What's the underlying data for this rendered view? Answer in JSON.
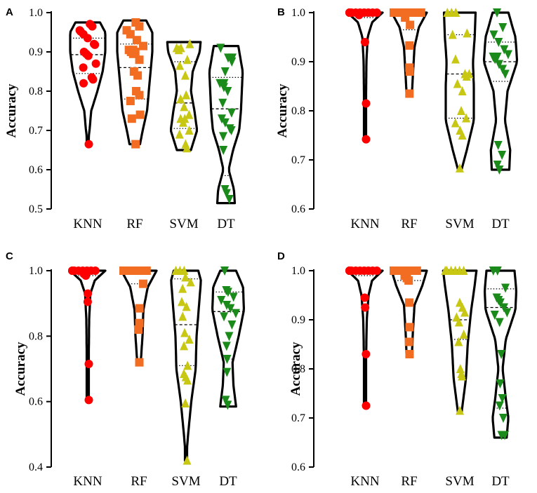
{
  "chart_data": [
    {
      "panel": "A",
      "type": "violin",
      "ylabel": "Accuracy",
      "ylim": [
        0.5,
        1.0
      ],
      "yticks": [
        "0.5",
        "0.6",
        "0.7",
        "0.8",
        "0.9",
        "1.0"
      ],
      "categories": [
        "KNN",
        "RF",
        "SVM",
        "DT"
      ],
      "series": [
        {
          "name": "KNN",
          "color": "#ff0000",
          "marker": "circle",
          "values": [
            0.971,
            0.965,
            0.955,
            0.952,
            0.945,
            0.935,
            0.92,
            0.918,
            0.9,
            0.895,
            0.89,
            0.87,
            0.86,
            0.835,
            0.83,
            0.82,
            0.665
          ],
          "range": [
            0.665,
            0.975
          ],
          "median": 0.893,
          "quartiles": [
            0.845,
            0.935
          ],
          "profile": [
            [
              0.665,
              0.0
            ],
            [
              0.7,
              0.1
            ],
            [
              0.75,
              0.2
            ],
            [
              0.8,
              0.55
            ],
            [
              0.85,
              0.85
            ],
            [
              0.9,
              1.0
            ],
            [
              0.95,
              1.0
            ],
            [
              0.975,
              0.7
            ]
          ]
        },
        {
          "name": "RF",
          "color": "#f26c22",
          "marker": "square",
          "values": [
            0.975,
            0.965,
            0.955,
            0.945,
            0.93,
            0.915,
            0.905,
            0.905,
            0.9,
            0.9,
            0.895,
            0.88,
            0.85,
            0.84,
            0.8,
            0.79,
            0.775,
            0.74,
            0.73,
            0.665
          ],
          "range": [
            0.665,
            0.98
          ],
          "median": 0.86,
          "quartiles": [
            0.78,
            0.92
          ],
          "profile": [
            [
              0.665,
              0.3
            ],
            [
              0.7,
              0.45
            ],
            [
              0.75,
              0.7
            ],
            [
              0.8,
              0.8
            ],
            [
              0.85,
              0.9
            ],
            [
              0.9,
              1.0
            ],
            [
              0.95,
              1.0
            ],
            [
              0.98,
              0.65
            ]
          ]
        },
        {
          "name": "SVM",
          "color": "#c8c814",
          "marker": "triangle-up",
          "values": [
            0.92,
            0.91,
            0.91,
            0.905,
            0.88,
            0.865,
            0.84,
            0.79,
            0.78,
            0.76,
            0.74,
            0.73,
            0.73,
            0.72,
            0.7,
            0.69,
            0.665,
            0.655
          ],
          "range": [
            0.65,
            0.925
          ],
          "median": 0.77,
          "quartiles": [
            0.705,
            0.875
          ],
          "profile": [
            [
              0.65,
              0.4
            ],
            [
              0.7,
              0.75
            ],
            [
              0.75,
              0.6
            ],
            [
              0.8,
              0.4
            ],
            [
              0.85,
              0.5
            ],
            [
              0.9,
              0.9
            ],
            [
              0.925,
              0.95
            ]
          ]
        },
        {
          "name": "DT",
          "color": "#1a8a1a",
          "marker": "triangle-down",
          "values": [
            0.91,
            0.885,
            0.885,
            0.875,
            0.85,
            0.82,
            0.82,
            0.81,
            0.8,
            0.77,
            0.745,
            0.73,
            0.72,
            0.705,
            0.7,
            0.685,
            0.65,
            0.55,
            0.54,
            0.525
          ],
          "range": [
            0.515,
            0.915
          ],
          "median": 0.755,
          "quartiles": [
            0.585,
            0.835
          ],
          "profile": [
            [
              0.515,
              0.5
            ],
            [
              0.55,
              0.45
            ],
            [
              0.6,
              0.15
            ],
            [
              0.65,
              0.4
            ],
            [
              0.7,
              0.75
            ],
            [
              0.75,
              0.85
            ],
            [
              0.8,
              0.9
            ],
            [
              0.85,
              0.95
            ],
            [
              0.915,
              0.7
            ]
          ]
        }
      ]
    },
    {
      "panel": "B",
      "type": "violin",
      "ylabel": "Accuracy",
      "ylim": [
        0.6,
        1.0
      ],
      "yticks": [
        "0.6",
        "0.7",
        "0.8",
        "0.9",
        "1.0"
      ],
      "categories": [
        "KNN",
        "RF",
        "SVM",
        "DT"
      ],
      "series": [
        {
          "name": "KNN",
          "color": "#ff0000",
          "marker": "circle",
          "values": [
            1.0,
            1.0,
            1.0,
            1.0,
            1.0,
            1.0,
            1.0,
            1.0,
            1.0,
            1.0,
            1.0,
            0.995,
            0.94,
            0.815,
            0.742
          ],
          "range": [
            0.74,
            1.0
          ],
          "median": 1.0,
          "quartiles": [
            0.99,
            1.0
          ],
          "profile": [
            [
              0.74,
              0.0
            ],
            [
              0.8,
              0.05
            ],
            [
              0.9,
              0.08
            ],
            [
              0.95,
              0.15
            ],
            [
              0.98,
              0.4
            ],
            [
              1.0,
              1.0
            ]
          ]
        },
        {
          "name": "RF",
          "color": "#f26c22",
          "marker": "square",
          "values": [
            1.0,
            1.0,
            1.0,
            1.0,
            1.0,
            1.0,
            1.0,
            1.0,
            1.0,
            1.0,
            1.0,
            0.99,
            0.975,
            0.933,
            0.888,
            0.88,
            0.835
          ],
          "range": [
            0.833,
            1.0
          ],
          "median": 1.0,
          "quartiles": [
            0.965,
            1.0
          ],
          "profile": [
            [
              0.833,
              0.15
            ],
            [
              0.88,
              0.22
            ],
            [
              0.93,
              0.3
            ],
            [
              0.97,
              0.55
            ],
            [
              1.0,
              1.0
            ]
          ]
        },
        {
          "name": "SVM",
          "color": "#c8c814",
          "marker": "triangle-up",
          "values": [
            1.0,
            1.0,
            1.0,
            0.958,
            0.955,
            0.905,
            0.875,
            0.875,
            0.87,
            0.855,
            0.84,
            0.8,
            0.785,
            0.775,
            0.76,
            0.75,
            0.683
          ],
          "range": [
            0.68,
            1.0
          ],
          "median": 0.875,
          "quartiles": [
            0.785,
            0.955
          ],
          "profile": [
            [
              0.68,
              0.1
            ],
            [
              0.72,
              0.4
            ],
            [
              0.78,
              0.8
            ],
            [
              0.85,
              0.8
            ],
            [
              0.9,
              0.75
            ],
            [
              0.95,
              0.85
            ],
            [
              1.0,
              0.9
            ]
          ]
        },
        {
          "name": "DT",
          "color": "#1a8a1a",
          "marker": "triangle-down",
          "values": [
            1.0,
            0.97,
            0.955,
            0.94,
            0.925,
            0.915,
            0.91,
            0.91,
            0.905,
            0.895,
            0.885,
            0.875,
            0.73,
            0.71,
            0.69,
            0.68
          ],
          "range": [
            0.68,
            1.0
          ],
          "median": 0.9,
          "quartiles": [
            0.86,
            0.94
          ],
          "profile": [
            [
              0.68,
              0.5
            ],
            [
              0.72,
              0.55
            ],
            [
              0.78,
              0.25
            ],
            [
              0.84,
              0.4
            ],
            [
              0.9,
              0.95
            ],
            [
              0.95,
              0.85
            ],
            [
              1.0,
              0.45
            ]
          ]
        }
      ]
    },
    {
      "panel": "C",
      "type": "violin",
      "ylabel": "Accuracy",
      "ylim": [
        0.4,
        1.0
      ],
      "yticks": [
        "0.4",
        "0.6",
        "0.8",
        "1.0"
      ],
      "categories": [
        "KNN",
        "RF",
        "SVM",
        "DT"
      ],
      "series": [
        {
          "name": "KNN",
          "color": "#ff0000",
          "marker": "circle",
          "values": [
            1.0,
            1.0,
            1.0,
            1.0,
            1.0,
            1.0,
            1.0,
            1.0,
            0.99,
            0.985,
            0.93,
            0.905,
            0.715,
            0.605
          ],
          "range": [
            0.6,
            1.0
          ],
          "median": 1.0,
          "quartiles": [
            0.985,
            1.0
          ],
          "profile": [
            [
              0.6,
              0.0
            ],
            [
              0.7,
              0.05
            ],
            [
              0.85,
              0.08
            ],
            [
              0.93,
              0.15
            ],
            [
              0.97,
              0.4
            ],
            [
              1.0,
              1.0
            ]
          ]
        },
        {
          "name": "RF",
          "color": "#f26c22",
          "marker": "square",
          "values": [
            1.0,
            1.0,
            1.0,
            1.0,
            1.0,
            1.0,
            1.0,
            1.0,
            1.0,
            0.96,
            0.885,
            0.84,
            0.82,
            0.72
          ],
          "range": [
            0.72,
            1.0
          ],
          "median": 1.0,
          "quartiles": [
            0.96,
            1.0
          ],
          "profile": [
            [
              0.72,
              0.1
            ],
            [
              0.8,
              0.2
            ],
            [
              0.88,
              0.25
            ],
            [
              0.95,
              0.5
            ],
            [
              1.0,
              1.0
            ]
          ]
        },
        {
          "name": "SVM",
          "color": "#c8c814",
          "marker": "triangle-up",
          "values": [
            1.0,
            1.0,
            1.0,
            0.98,
            0.965,
            0.945,
            0.905,
            0.89,
            0.86,
            0.81,
            0.79,
            0.77,
            0.71,
            0.685,
            0.675,
            0.665,
            0.595,
            0.42
          ],
          "range": [
            0.42,
            1.0
          ],
          "median": 0.835,
          "quartiles": [
            0.71,
            0.975
          ],
          "profile": [
            [
              0.42,
              0.0
            ],
            [
              0.5,
              0.12
            ],
            [
              0.6,
              0.3
            ],
            [
              0.7,
              0.55
            ],
            [
              0.8,
              0.6
            ],
            [
              0.9,
              0.75
            ],
            [
              0.97,
              0.85
            ],
            [
              1.0,
              0.7
            ]
          ]
        },
        {
          "name": "DT",
          "color": "#1a8a1a",
          "marker": "triangle-down",
          "values": [
            1.0,
            0.94,
            0.935,
            0.92,
            0.91,
            0.895,
            0.885,
            0.87,
            0.86,
            0.835,
            0.8,
            0.77,
            0.73,
            0.69,
            0.605,
            0.59
          ],
          "range": [
            0.585,
            1.0
          ],
          "median": 0.875,
          "quartiles": [
            0.73,
            0.935
          ],
          "profile": [
            [
              0.585,
              0.45
            ],
            [
              0.65,
              0.3
            ],
            [
              0.72,
              0.25
            ],
            [
              0.8,
              0.6
            ],
            [
              0.88,
              0.9
            ],
            [
              0.95,
              0.85
            ],
            [
              1.0,
              0.45
            ]
          ]
        }
      ]
    },
    {
      "panel": "D",
      "type": "violin",
      "ylabel": "Accuracy",
      "ylim": [
        0.6,
        1.0
      ],
      "yticks": [
        "0.6",
        "0.7",
        "0.8",
        "0.9",
        "1.0"
      ],
      "categories": [
        "KNN",
        "RF",
        "SVM",
        "DT"
      ],
      "series": [
        {
          "name": "KNN",
          "color": "#ff0000",
          "marker": "circle",
          "values": [
            1.0,
            1.0,
            1.0,
            1.0,
            1.0,
            1.0,
            1.0,
            1.0,
            1.0,
            1.0,
            1.0,
            0.945,
            0.925,
            0.83,
            0.725
          ],
          "range": [
            0.725,
            1.0
          ],
          "median": 1.0,
          "quartiles": [
            0.99,
            1.0
          ],
          "profile": [
            [
              0.725,
              0.0
            ],
            [
              0.8,
              0.05
            ],
            [
              0.9,
              0.1
            ],
            [
              0.95,
              0.2
            ],
            [
              0.98,
              0.4
            ],
            [
              1.0,
              1.0
            ]
          ]
        },
        {
          "name": "RF",
          "color": "#f26c22",
          "marker": "square",
          "values": [
            1.0,
            1.0,
            1.0,
            1.0,
            1.0,
            1.0,
            1.0,
            1.0,
            0.99,
            0.985,
            0.98,
            0.935,
            0.885,
            0.855,
            0.83
          ],
          "range": [
            0.825,
            1.0
          ],
          "median": 1.0,
          "quartiles": [
            0.98,
            1.0
          ],
          "profile": [
            [
              0.825,
              0.15
            ],
            [
              0.87,
              0.2
            ],
            [
              0.93,
              0.3
            ],
            [
              0.97,
              0.75
            ],
            [
              1.0,
              1.0
            ]
          ]
        },
        {
          "name": "SVM",
          "color": "#c8c814",
          "marker": "triangle-up",
          "values": [
            1.0,
            1.0,
            1.0,
            1.0,
            1.0,
            1.0,
            0.935,
            0.925,
            0.915,
            0.905,
            0.895,
            0.87,
            0.855,
            0.8,
            0.79,
            0.785,
            0.715
          ],
          "range": [
            0.71,
            1.0
          ],
          "median": 0.9,
          "quartiles": [
            0.86,
            1.0
          ],
          "profile": [
            [
              0.71,
              0.1
            ],
            [
              0.78,
              0.35
            ],
            [
              0.85,
              0.45
            ],
            [
              0.92,
              0.65
            ],
            [
              0.97,
              0.85
            ],
            [
              1.0,
              0.95
            ]
          ]
        },
        {
          "name": "DT",
          "color": "#1a8a1a",
          "marker": "triangle-down",
          "values": [
            1.0,
            1.0,
            0.965,
            0.945,
            0.94,
            0.935,
            0.925,
            0.915,
            0.91,
            0.895,
            0.83,
            0.77,
            0.74,
            0.725,
            0.7,
            0.665,
            0.665
          ],
          "range": [
            0.66,
            1.0
          ],
          "median": 0.925,
          "quartiles": [
            0.72,
            0.963
          ],
          "profile": [
            [
              0.66,
              0.35
            ],
            [
              0.7,
              0.45
            ],
            [
              0.74,
              0.3
            ],
            [
              0.8,
              0.12
            ],
            [
              0.86,
              0.3
            ],
            [
              0.92,
              0.85
            ],
            [
              0.96,
              0.9
            ],
            [
              1.0,
              0.8
            ]
          ]
        }
      ]
    }
  ]
}
